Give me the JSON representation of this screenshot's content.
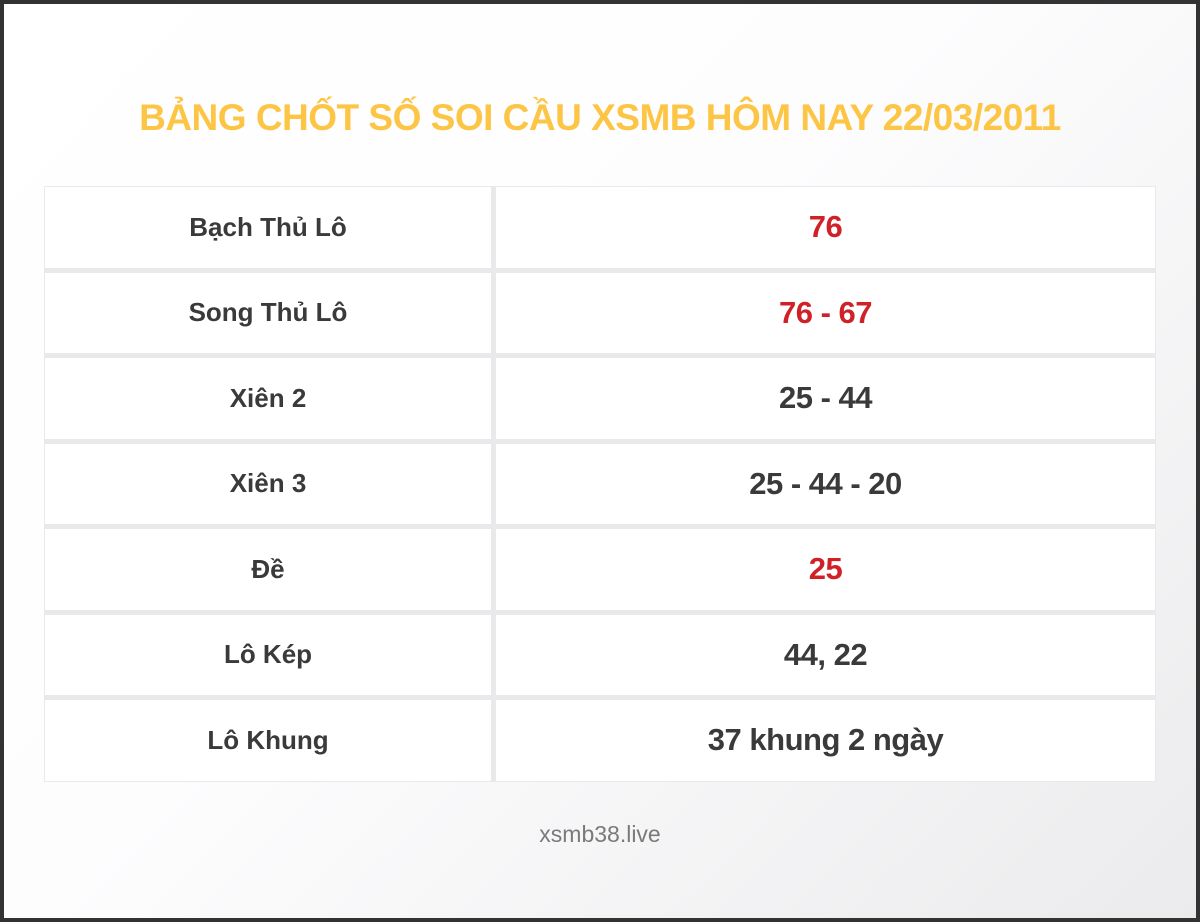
{
  "page": {
    "footer": "xsmb38.live"
  },
  "colors": {
    "title": "#fdc545",
    "highlight_red": "#d02128",
    "text": "#3a3a3a",
    "frame_border": "#333333",
    "footer_text": "#7a7a7a"
  },
  "chart_data": {
    "type": "table",
    "title": "BẢNG CHỐT SỐ SOI CẦU XSMB HÔM NAY 22/03/2011",
    "columns": [
      "label",
      "value"
    ],
    "rows": [
      {
        "label": "Bạch Thủ Lô",
        "value": "76",
        "highlight": true
      },
      {
        "label": "Song Thủ Lô",
        "value": "76 - 67",
        "highlight": true
      },
      {
        "label": "Xiên 2",
        "value": "25 - 44",
        "highlight": false
      },
      {
        "label": "Xiên 3",
        "value": "25 - 44 - 20",
        "highlight": false
      },
      {
        "label": "Đề",
        "value": "25",
        "highlight": true
      },
      {
        "label": "Lô Kép",
        "value": "44, 22",
        "highlight": false
      },
      {
        "label": "Lô Khung",
        "value": "37 khung 2 ngày",
        "highlight": false
      }
    ],
    "layout": {
      "grid": true,
      "legend": false
    }
  }
}
